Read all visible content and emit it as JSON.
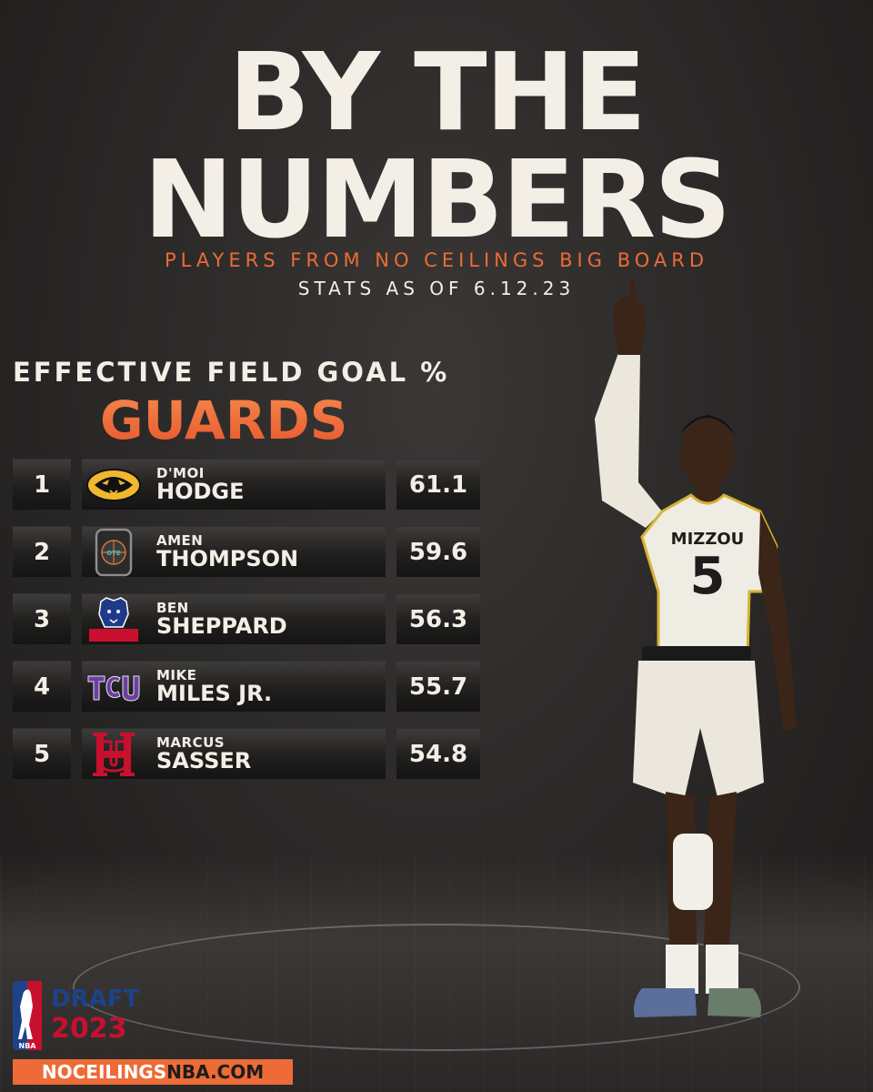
{
  "header": {
    "title_line1": "BY THE",
    "title_line2": "NUMBERS",
    "subtitle": "PLAYERS FROM NO CEILINGS BIG BOARD",
    "stats_date": "STATS AS OF 6.12.23"
  },
  "section": {
    "title": "EFFECTIVE FIELD GOAL %",
    "category": "GUARDS"
  },
  "rows": [
    {
      "rank": "1",
      "first": "D'MOI",
      "last": "HODGE",
      "value": "61.1",
      "logo": "missouri-tiger-logo"
    },
    {
      "rank": "2",
      "first": "AMEN",
      "last": "THOMPSON",
      "value": "59.6",
      "logo": "ote-logo"
    },
    {
      "rank": "3",
      "first": "BEN",
      "last": "SHEPPARD",
      "value": "56.3",
      "logo": "belmont-bruin-logo"
    },
    {
      "rank": "4",
      "first": "MIKE",
      "last": "MILES JR.",
      "value": "55.7",
      "logo": "tcu-logo"
    },
    {
      "rank": "5",
      "first": "MARCUS",
      "last": "SASSER",
      "value": "54.8",
      "logo": "houston-logo"
    }
  ],
  "player_photo": {
    "jersey_team": "MIZZOU",
    "jersey_number": "5"
  },
  "footer": {
    "draft_label": "DRAFT",
    "draft_year": "2023",
    "nba_label": "NBA",
    "site_part1": "NOCEILINGS",
    "site_part2": "NBA.COM"
  },
  "colors": {
    "accent": "#ec6b36",
    "text": "#f3efe6",
    "background": "#2c2a29"
  }
}
